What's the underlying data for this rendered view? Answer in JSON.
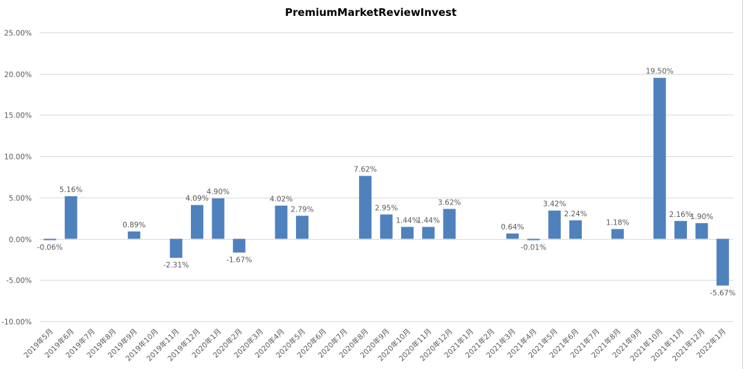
{
  "chart_data": {
    "type": "bar",
    "title": "PremiumMarketReviewInvest",
    "xlabel": "",
    "ylabel": "",
    "ylim": [
      -10,
      25
    ],
    "yticks": [
      25,
      20,
      15,
      10,
      5,
      0,
      -5,
      -10
    ],
    "ytick_labels": [
      "25.00%",
      "20.00%",
      "15.00%",
      "10.00%",
      "5.00%",
      "0.00%",
      "-5.00%",
      "-10.00%"
    ],
    "grid": true,
    "legend": "none",
    "bar_color": "#4f81bd",
    "categories": [
      "2019年5月",
      "2019年6月",
      "2019年7月",
      "2019年8月",
      "2019年9月",
      "2019年10月",
      "2019年11月",
      "2019年12月",
      "2020年1月",
      "2020年2月",
      "2020年3月",
      "2020年4月",
      "2020年5月",
      "2020年6月",
      "2020年7月",
      "2020年8月",
      "2020年9月",
      "2020年10月",
      "2020年11月",
      "2020年12月",
      "2021年1月",
      "2021年2月",
      "2021年3月",
      "2021年4月",
      "2021年5月",
      "2021年6月",
      "2021年7月",
      "2021年8月",
      "2021年9月",
      "2021年10月",
      "2021年11月",
      "2021年12月",
      "2022年1月"
    ],
    "values": [
      -0.06,
      5.16,
      null,
      null,
      0.89,
      null,
      -2.31,
      4.09,
      4.9,
      -1.67,
      null,
      4.02,
      2.79,
      null,
      null,
      7.62,
      2.95,
      1.44,
      1.44,
      3.62,
      null,
      null,
      0.64,
      -0.01,
      3.42,
      2.24,
      null,
      1.18,
      null,
      19.5,
      2.16,
      1.9,
      -5.67
    ],
    "data_labels": [
      "-0.06%",
      "5.16%",
      null,
      null,
      "0.89%",
      null,
      "-2.31%",
      "4.09%",
      "4.90%",
      "-1.67%",
      null,
      "4.02%",
      "2.79%",
      null,
      null,
      "7.62%",
      "2.95%",
      "1.44%",
      "1.44%",
      "3.62%",
      null,
      null,
      "0.64%",
      "-0.01%",
      "3.42%",
      "2.24%",
      null,
      "1.18%",
      null,
      "19.50%",
      "2.16%",
      "1.90%",
      "-5.67%"
    ]
  }
}
